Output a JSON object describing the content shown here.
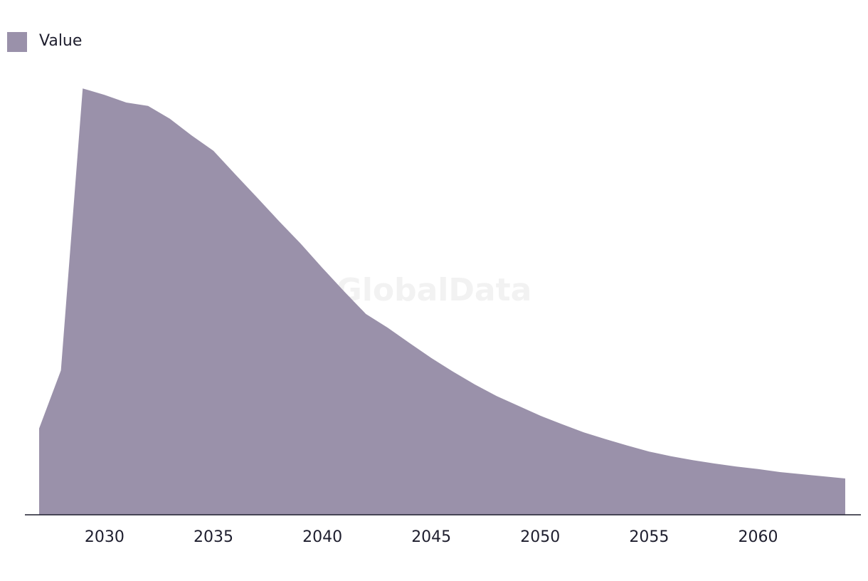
{
  "chart_data": {
    "type": "area",
    "watermark": "GlobalData",
    "x": [
      2027,
      2028,
      2029,
      2030,
      2031,
      2032,
      2033,
      2034,
      2035,
      2036,
      2037,
      2038,
      2039,
      2040,
      2041,
      2042,
      2043,
      2044,
      2045,
      2046,
      2047,
      2048,
      2049,
      2050,
      2051,
      2052,
      2053,
      2054,
      2055,
      2056,
      2057,
      2058,
      2059,
      2060,
      2061,
      2062,
      2063,
      2064
    ],
    "series": [
      {
        "name": "Value",
        "color": "#9a91aa",
        "values": [
          20.2,
          33.8,
          99.8,
          98.3,
          96.5,
          95.7,
          92.7,
          88.8,
          85.2,
          79.7,
          74.3,
          68.8,
          63.5,
          57.8,
          52.3,
          47.0,
          43.8,
          40.2,
          36.7,
          33.5,
          30.5,
          27.8,
          25.5,
          23.2,
          21.2,
          19.3,
          17.7,
          16.2,
          14.8,
          13.7,
          12.8,
          12.0,
          11.3,
          10.7,
          10.0,
          9.5,
          9.0,
          8.5
        ]
      }
    ],
    "xlim": [
      2027,
      2064
    ],
    "xticks": [
      2030,
      2035,
      2040,
      2045,
      2050,
      2055,
      2060
    ],
    "ylim": [
      0,
      100
    ],
    "legend": "top-left"
  }
}
